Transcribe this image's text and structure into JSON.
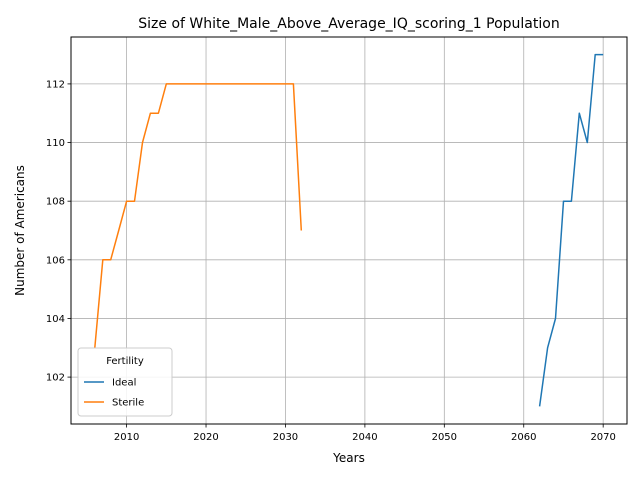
{
  "chart_data": {
    "type": "line",
    "title": "Size of White_Male_Above_Average_IQ_scoring_1 Population",
    "xlabel": "Years",
    "ylabel": "Number of Americans",
    "xlim": [
      2003,
      2073
    ],
    "ylim": [
      100.4,
      113.6
    ],
    "xticks": [
      2010,
      2020,
      2030,
      2040,
      2050,
      2060,
      2070
    ],
    "yticks": [
      102,
      104,
      106,
      108,
      110,
      112
    ],
    "grid": true,
    "legend": {
      "title": "Fertility",
      "placement": "lower-left"
    },
    "series": [
      {
        "name": "Ideal",
        "color": "#1f77b4",
        "x": [
          2062,
          2063,
          2064,
          2065,
          2066,
          2067,
          2068,
          2069,
          2070
        ],
        "y": [
          101,
          103,
          104,
          108,
          108,
          111,
          110,
          113,
          113
        ]
      },
      {
        "name": "Sterile",
        "color": "#ff7f0e",
        "x": [
          2006,
          2007,
          2008,
          2009,
          2010,
          2011,
          2012,
          2013,
          2014,
          2015,
          2016,
          2017,
          2018,
          2019,
          2020,
          2021,
          2022,
          2023,
          2024,
          2025,
          2026,
          2027,
          2028,
          2029,
          2030,
          2031,
          2032
        ],
        "y": [
          103,
          106,
          106,
          107,
          108,
          108,
          110,
          111,
          111,
          112,
          112,
          112,
          112,
          112,
          112,
          112,
          112,
          112,
          112,
          112,
          112,
          112,
          112,
          112,
          112,
          112,
          107
        ]
      }
    ]
  }
}
